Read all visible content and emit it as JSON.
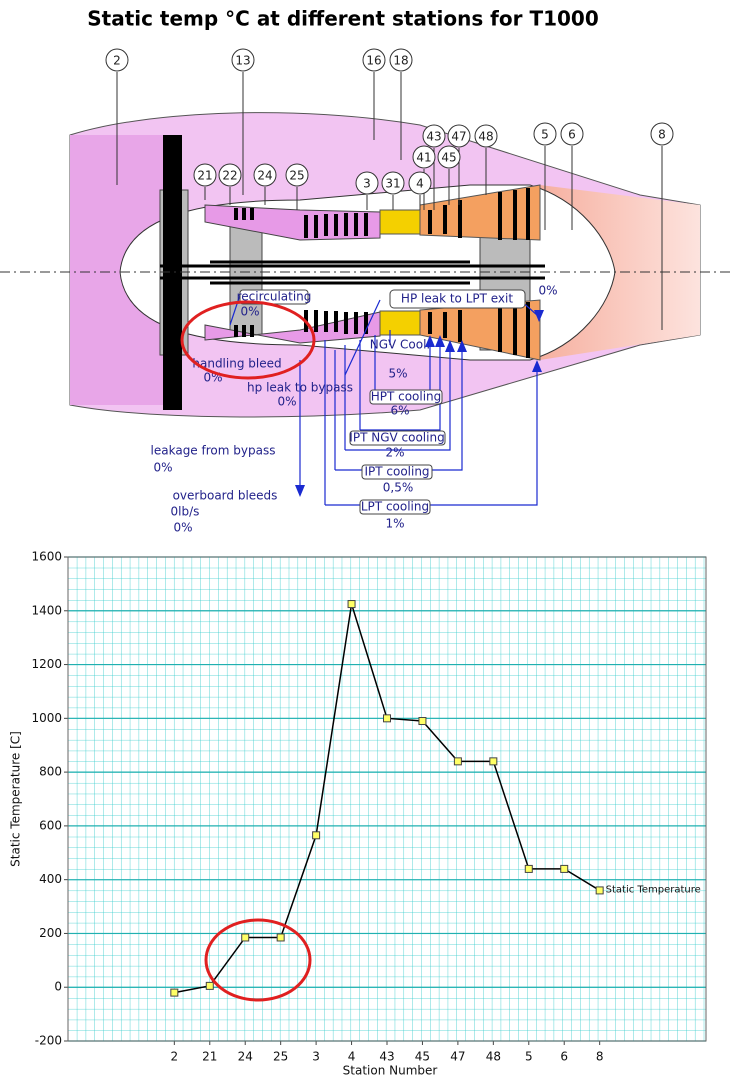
{
  "title": "Static temp °C at different stations for T1000",
  "diagram": {
    "stations": [
      "2",
      "13",
      "16",
      "18",
      "43",
      "47",
      "48",
      "5",
      "6",
      "8",
      "41",
      "45",
      "21",
      "22",
      "24",
      "25",
      "3",
      "31",
      "4"
    ],
    "flows": [
      "recirculating",
      "0%",
      "handling bleed",
      "0%",
      "hp leak to bypass",
      "0%",
      "HP leak to LPT exit",
      "0%",
      "NGV Cool.",
      "5%",
      "HPT cooling",
      "6%",
      "IPT NGV cooling",
      "2%",
      "IPT cooling",
      "0,5%",
      "LPT cooling",
      "1%",
      "leakage from bypass",
      "0%",
      "overboard bleeds",
      "0lb/s",
      "0%"
    ]
  },
  "chart_data": {
    "type": "line",
    "x_label": "Station Number",
    "y_label": "Static Temperature [C]",
    "categories": [
      "2",
      "21",
      "24",
      "25",
      "3",
      "4",
      "43",
      "45",
      "47",
      "48",
      "5",
      "6",
      "8"
    ],
    "series": [
      {
        "name": "Static Temperature",
        "color": "#000000",
        "marker_color": "#ffff66",
        "values": [
          -20,
          5,
          185,
          185,
          565,
          1425,
          1000,
          990,
          840,
          840,
          440,
          440,
          360
        ]
      }
    ],
    "ylim": [
      -200,
      1600
    ],
    "yticks": [
      -200,
      0,
      200,
      400,
      600,
      800,
      1000,
      1200,
      1400,
      1600
    ],
    "grid": true
  }
}
